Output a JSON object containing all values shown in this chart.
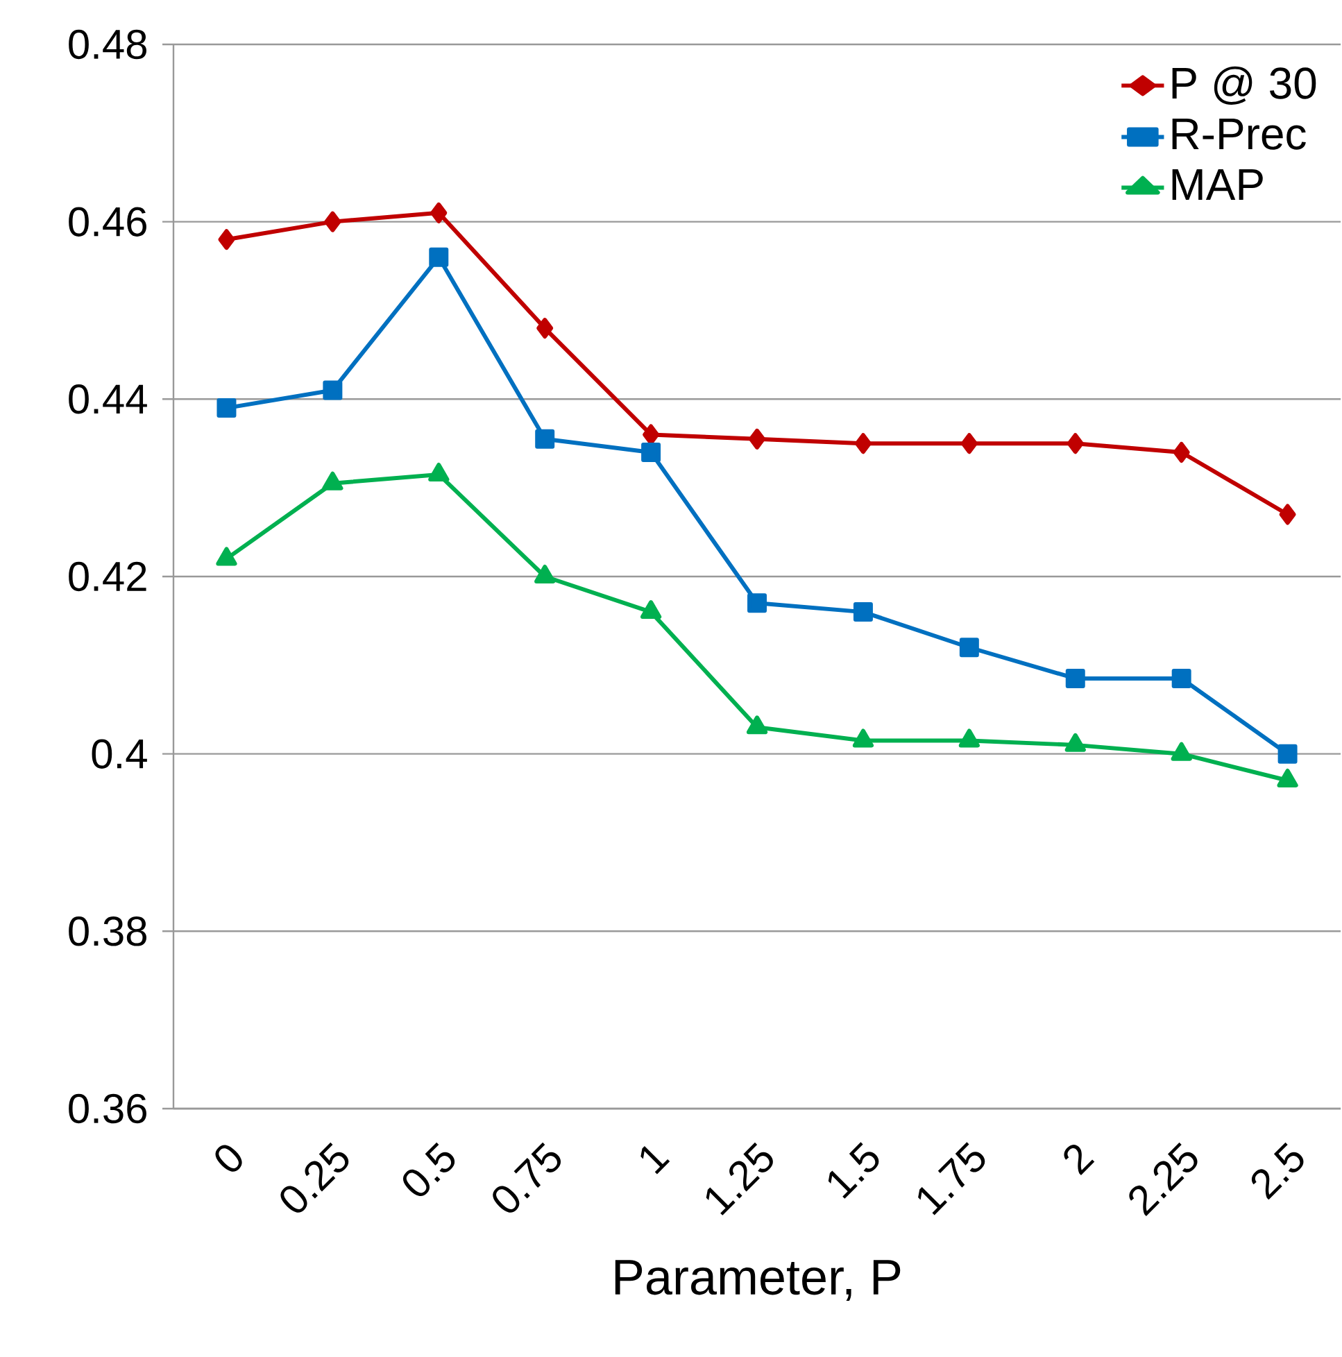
{
  "chart_data": {
    "type": "line",
    "xlabel": "Parameter, P",
    "categories": [
      "0",
      "0.25",
      "0.5",
      "0.75",
      "1",
      "1.25",
      "1.5",
      "1.75",
      "2",
      "2.25",
      "2.5"
    ],
    "series": [
      {
        "name": "P @ 30",
        "color": "#c00000",
        "marker": "diamond",
        "values": [
          0.458,
          0.46,
          0.461,
          0.448,
          0.436,
          0.4355,
          0.435,
          0.435,
          0.435,
          0.434,
          0.427
        ]
      },
      {
        "name": "R-Prec",
        "color": "#0070c0",
        "marker": "square",
        "values": [
          0.439,
          0.441,
          0.456,
          0.4355,
          0.434,
          0.417,
          0.416,
          0.412,
          0.4085,
          0.4085,
          0.4
        ]
      },
      {
        "name": "MAP",
        "color": "#00b050",
        "marker": "triangle",
        "values": [
          0.422,
          0.4305,
          0.4315,
          0.42,
          0.416,
          0.403,
          0.4015,
          0.4015,
          0.401,
          0.4,
          0.397
        ]
      }
    ],
    "ylim": [
      0.36,
      0.48
    ],
    "yticks": [
      0.36,
      0.38,
      0.4,
      0.42,
      0.44,
      0.46,
      0.48
    ],
    "grid": "y",
    "legend": "top right"
  }
}
